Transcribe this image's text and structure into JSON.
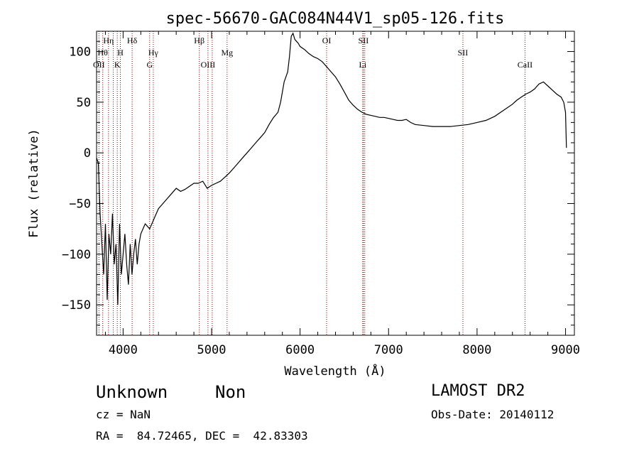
{
  "chart_data": {
    "type": "line",
    "title": "spec-56670-GAC084N44V1_sp05-126.fits",
    "xlabel": "Wavelength (Å)",
    "ylabel": "Flux (relative)",
    "xlim": [
      3700,
      9100
    ],
    "ylim": [
      -180,
      120
    ],
    "xticks": [
      4000,
      5000,
      6000,
      7000,
      8000,
      9000
    ],
    "xtick_labels": [
      "4000",
      "5000",
      "6000",
      "7000",
      "8000",
      "9000"
    ],
    "yticks": [
      -150,
      -100,
      -50,
      0,
      50,
      100
    ],
    "ytick_labels": [
      "−150",
      "−100",
      "−50",
      "0",
      "50",
      "100"
    ],
    "line_color": "#000000",
    "marker_color": "#8b0000",
    "series": [
      {
        "x": [
          3700,
          3720,
          3740,
          3760,
          3780,
          3800,
          3820,
          3840,
          3860,
          3880,
          3900,
          3920,
          3940,
          3960,
          3980,
          4000,
          4020,
          4040,
          4060,
          4080,
          4100,
          4120,
          4140,
          4160,
          4180,
          4200,
          4250,
          4300,
          4350,
          4400,
          4450,
          4500,
          4550,
          4600,
          4650,
          4700,
          4750,
          4800,
          4850,
          4900,
          4950,
          5000,
          5050,
          5100,
          5150,
          5200,
          5250,
          5300,
          5350,
          5400,
          5450,
          5500,
          5550,
          5600,
          5650,
          5700,
          5750,
          5780,
          5800,
          5820,
          5840,
          5860,
          5880,
          5900,
          5920,
          5940,
          5960,
          5980,
          6000,
          6050,
          6100,
          6150,
          6200,
          6250,
          6300,
          6350,
          6400,
          6450,
          6500,
          6550,
          6600,
          6650,
          6700,
          6750,
          6800,
          6850,
          6900,
          6950,
          7000,
          7050,
          7100,
          7150,
          7200,
          7250,
          7300,
          7400,
          7500,
          7600,
          7700,
          7800,
          7900,
          8000,
          8100,
          8200,
          8300,
          8400,
          8450,
          8500,
          8550,
          8600,
          8650,
          8700,
          8750,
          8800,
          8850,
          8900,
          8950,
          8980,
          9000,
          9010
        ],
        "y": [
          -5,
          -10,
          -60,
          -90,
          -120,
          -70,
          -145,
          -80,
          -100,
          -60,
          -110,
          -90,
          -150,
          -70,
          -120,
          -100,
          -80,
          -110,
          -130,
          -90,
          -120,
          -100,
          -85,
          -110,
          -90,
          -80,
          -70,
          -75,
          -65,
          -55,
          -50,
          -45,
          -40,
          -35,
          -38,
          -36,
          -33,
          -30,
          -30,
          -28,
          -35,
          -32,
          -30,
          -28,
          -24,
          -20,
          -15,
          -10,
          -5,
          0,
          5,
          10,
          15,
          20,
          28,
          35,
          40,
          50,
          60,
          70,
          75,
          80,
          95,
          115,
          118,
          112,
          110,
          108,
          105,
          102,
          98,
          95,
          93,
          90,
          85,
          80,
          75,
          68,
          60,
          52,
          47,
          43,
          40,
          38,
          37,
          36,
          35,
          35,
          34,
          33,
          32,
          32,
          33,
          30,
          28,
          27,
          26,
          26,
          26,
          27,
          28,
          30,
          32,
          36,
          42,
          48,
          52,
          55,
          58,
          60,
          63,
          68,
          70,
          66,
          62,
          58,
          55,
          50,
          40,
          5
        ]
      }
    ],
    "line_markers": [
      {
        "x": 3727,
        "label": "OII",
        "row": 2
      },
      {
        "x": 3770,
        "label": "Hθ",
        "row": 1
      },
      {
        "x": 3835,
        "label": "Hη",
        "row": 0
      },
      {
        "x": 3889,
        "label": "",
        "row": 0
      },
      {
        "x": 3934,
        "label": "K",
        "row": 2
      },
      {
        "x": 3969,
        "label": "H",
        "row": 1
      },
      {
        "x": 4102,
        "label": "Hδ",
        "row": 0
      },
      {
        "x": 4300,
        "label": "G",
        "row": 2
      },
      {
        "x": 4341,
        "label": "Hγ",
        "row": 1
      },
      {
        "x": 4861,
        "label": "Hβ",
        "row": 0
      },
      {
        "x": 4959,
        "label": "OIII",
        "row": 2
      },
      {
        "x": 5007,
        "label": "",
        "row": 2
      },
      {
        "x": 5175,
        "label": "Mg",
        "row": 1
      },
      {
        "x": 6300,
        "label": "OI",
        "row": 0
      },
      {
        "x": 6708,
        "label": "Li",
        "row": 2
      },
      {
        "x": 6716,
        "label": "SII",
        "row": 0
      },
      {
        "x": 6731,
        "label": "",
        "row": 0
      },
      {
        "x": 7840,
        "label": "SII",
        "row": 1
      },
      {
        "x": 8542,
        "label": "CaII",
        "row": 2
      }
    ]
  },
  "info": {
    "class": "Unknown",
    "subclass": "Non",
    "survey": "LAMOST DR2",
    "cz": "cz = NaN",
    "obs_date": "Obs-Date: 20140112",
    "radec": "RA =  84.72465, DEC =  42.83303"
  }
}
